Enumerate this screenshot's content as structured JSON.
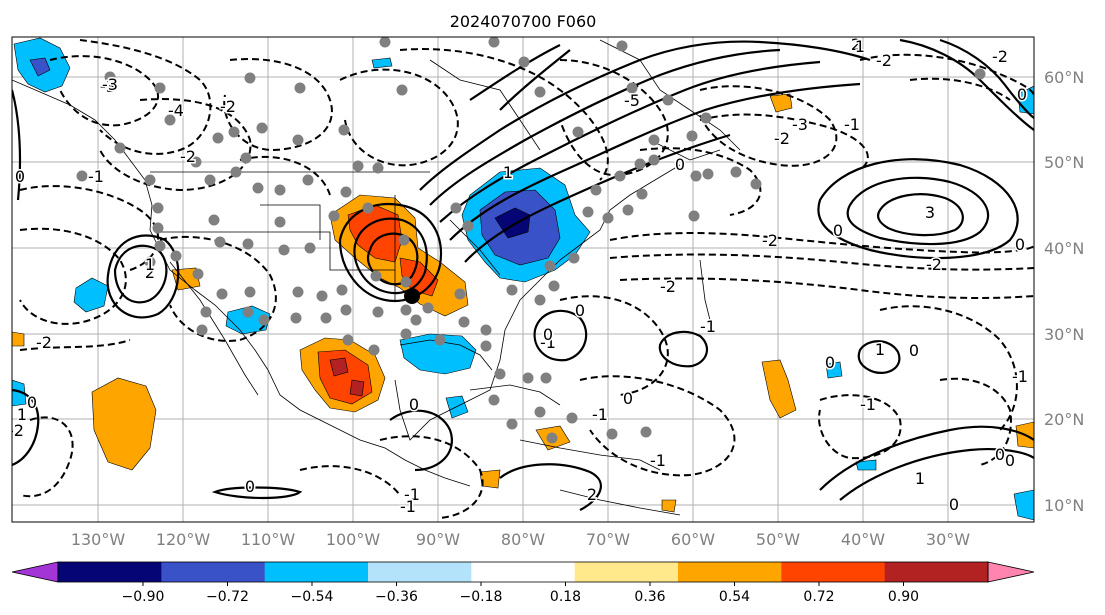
{
  "title": "2024070700 F060",
  "map": {
    "lon_labels": [
      "130°W",
      "120°W",
      "110°W",
      "100°W",
      "90°W",
      "80°W",
      "70°W",
      "60°W",
      "50°W",
      "40°W",
      "30°W"
    ],
    "lat_labels": [
      "60°N",
      "50°N",
      "40°N",
      "30°N",
      "20°N",
      "10°N"
    ],
    "label_color": "#808080",
    "grid_color": "#b0b0b0",
    "contour_labels": [
      "-3",
      "-4",
      "-2",
      "-1",
      "0",
      "-2",
      "-5",
      "-3",
      "-2",
      "-1",
      "0",
      "2",
      "1",
      "3",
      "-2",
      "-2",
      "0",
      "-2",
      "-2",
      "1",
      "-1",
      "0",
      "-2",
      "1",
      "0",
      "-1",
      "-2",
      "0",
      "1",
      "-2",
      "0",
      "-1",
      "-1",
      "1",
      "-1",
      "2",
      "0",
      "0",
      "0",
      "0",
      "-1",
      "0",
      "-3",
      "2",
      "1",
      "-1",
      "0",
      "0",
      "0",
      "-1",
      "0"
    ]
  },
  "colorbar": {
    "tick_labels": [
      "−0.90",
      "−0.72",
      "−0.54",
      "−0.36",
      "−0.18",
      "0.18",
      "0.36",
      "0.54",
      "0.72",
      "0.90"
    ],
    "colors": [
      "#a335d6",
      "#050575",
      "#3a52c8",
      "#00bfff",
      "#b3e3fb",
      "#ffffff",
      "#ffe98b",
      "#ffa500",
      "#ff4400",
      "#b22222",
      "#ff85b0"
    ]
  }
}
